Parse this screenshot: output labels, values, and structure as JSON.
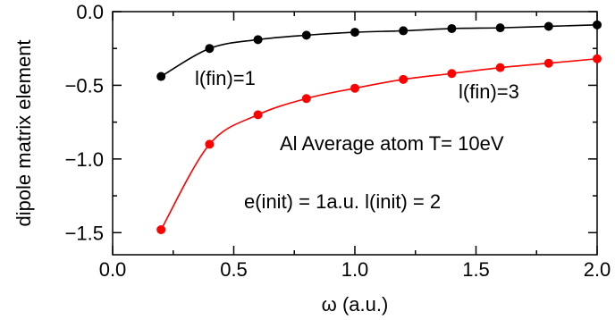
{
  "chart_data": {
    "type": "line",
    "title": "",
    "xlabel": "ω (a.u.)",
    "ylabel": "dipole matrix element",
    "xlim": [
      0.0,
      2.0
    ],
    "ylim": [
      -1.65,
      0.0
    ],
    "x_ticks": [
      0.0,
      0.5,
      1.0,
      1.5,
      2.0
    ],
    "x_tick_labels": [
      "0.0",
      "0.5",
      "1.0",
      "1.5",
      "2.0"
    ],
    "y_ticks": [
      0.0,
      -0.5,
      -1.0,
      -1.5
    ],
    "y_tick_labels": [
      "0.0",
      "−0.5",
      "−1.0",
      "−1.5"
    ],
    "grid": false,
    "legend": "none",
    "series": [
      {
        "color": "#000000",
        "x": [
          0.2,
          0.4,
          0.6,
          0.8,
          1.0,
          1.2,
          1.4,
          1.6,
          1.8,
          2.0
        ],
        "y": [
          -0.44,
          -0.25,
          -0.19,
          -0.16,
          -0.14,
          -0.13,
          -0.115,
          -0.11,
          -0.1,
          -0.09
        ]
      },
      {
        "color": "#ff0000",
        "x": [
          0.2,
          0.4,
          0.6,
          0.8,
          1.0,
          1.2,
          1.4,
          1.6,
          1.8,
          2.0
        ],
        "y": [
          -1.48,
          -0.9,
          -0.7,
          -0.59,
          -0.52,
          -0.46,
          -0.42,
          -0.38,
          -0.35,
          -0.32
        ]
      }
    ],
    "annotations": [
      "l(fin)=1",
      "l(fin)=3",
      "Al Average atom T= 10eV",
      "e(init) = 1a.u.  l(init) = 2"
    ]
  }
}
